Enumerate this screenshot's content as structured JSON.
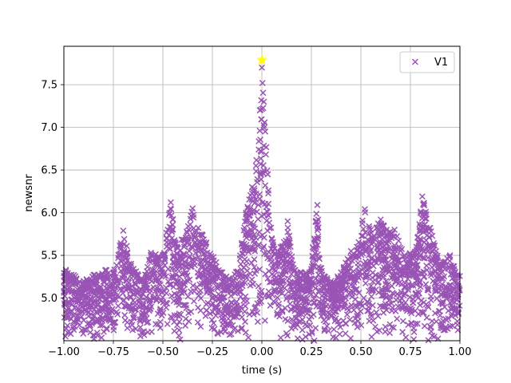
{
  "chart_data": {
    "type": "scatter",
    "xlabel": "time (s)",
    "ylabel": "newsnr",
    "xlim": [
      -1.0,
      1.0
    ],
    "ylim": [
      4.5,
      7.95
    ],
    "grid": true,
    "legend_placement": "top-right",
    "x_ticks": [
      "−1.00",
      "−0.75",
      "−0.50",
      "−0.25",
      "0.00",
      "0.25",
      "0.50",
      "0.75",
      "1.00"
    ],
    "y_ticks": [
      "5.0",
      "5.5",
      "6.0",
      "6.5",
      "7.0",
      "7.5"
    ],
    "series": [
      {
        "name": "V1",
        "marker": "x",
        "color": "#9954b5",
        "peaks": [
          {
            "x": -0.99,
            "y": 5.33
          },
          {
            "x": -0.9,
            "y": 5.2
          },
          {
            "x": -0.85,
            "y": 5.27
          },
          {
            "x": -0.79,
            "y": 5.33
          },
          {
            "x": -0.75,
            "y": 5.3
          },
          {
            "x": -0.7,
            "y": 5.79
          },
          {
            "x": -0.66,
            "y": 5.4
          },
          {
            "x": -0.6,
            "y": 5.2
          },
          {
            "x": -0.56,
            "y": 5.53
          },
          {
            "x": -0.5,
            "y": 5.5
          },
          {
            "x": -0.46,
            "y": 6.12
          },
          {
            "x": -0.43,
            "y": 5.6
          },
          {
            "x": -0.38,
            "y": 5.78
          },
          {
            "x": -0.35,
            "y": 6.05
          },
          {
            "x": -0.3,
            "y": 5.74
          },
          {
            "x": -0.28,
            "y": 5.65
          },
          {
            "x": -0.2,
            "y": 5.3
          },
          {
            "x": -0.15,
            "y": 5.2
          },
          {
            "x": -0.11,
            "y": 5.5
          },
          {
            "x": -0.08,
            "y": 6.0
          },
          {
            "x": -0.05,
            "y": 6.3
          },
          {
            "x": -0.03,
            "y": 6.55
          },
          {
            "x": -0.01,
            "y": 7.2
          },
          {
            "x": 0.0,
            "y": 7.7
          },
          {
            "x": 0.01,
            "y": 7.3
          },
          {
            "x": 0.03,
            "y": 6.45
          },
          {
            "x": 0.05,
            "y": 5.7
          },
          {
            "x": 0.08,
            "y": 5.5
          },
          {
            "x": 0.13,
            "y": 5.9
          },
          {
            "x": 0.16,
            "y": 5.35
          },
          {
            "x": 0.2,
            "y": 5.3
          },
          {
            "x": 0.24,
            "y": 5.3
          },
          {
            "x": 0.28,
            "y": 6.09
          },
          {
            "x": 0.3,
            "y": 5.35
          },
          {
            "x": 0.35,
            "y": 5.2
          },
          {
            "x": 0.4,
            "y": 5.3
          },
          {
            "x": 0.45,
            "y": 5.55
          },
          {
            "x": 0.48,
            "y": 5.6
          },
          {
            "x": 0.52,
            "y": 6.04
          },
          {
            "x": 0.55,
            "y": 5.8
          },
          {
            "x": 0.6,
            "y": 5.92
          },
          {
            "x": 0.63,
            "y": 5.8
          },
          {
            "x": 0.67,
            "y": 5.8
          },
          {
            "x": 0.72,
            "y": 5.5
          },
          {
            "x": 0.78,
            "y": 5.6
          },
          {
            "x": 0.81,
            "y": 6.19
          },
          {
            "x": 0.85,
            "y": 5.82
          },
          {
            "x": 0.9,
            "y": 5.4
          },
          {
            "x": 0.95,
            "y": 5.5
          },
          {
            "x": 0.99,
            "y": 5.26
          }
        ],
        "floor": 4.5
      }
    ],
    "highlight_point": {
      "x": 0.0,
      "y": 7.79,
      "color": "#ffff00",
      "marker": "star"
    }
  }
}
